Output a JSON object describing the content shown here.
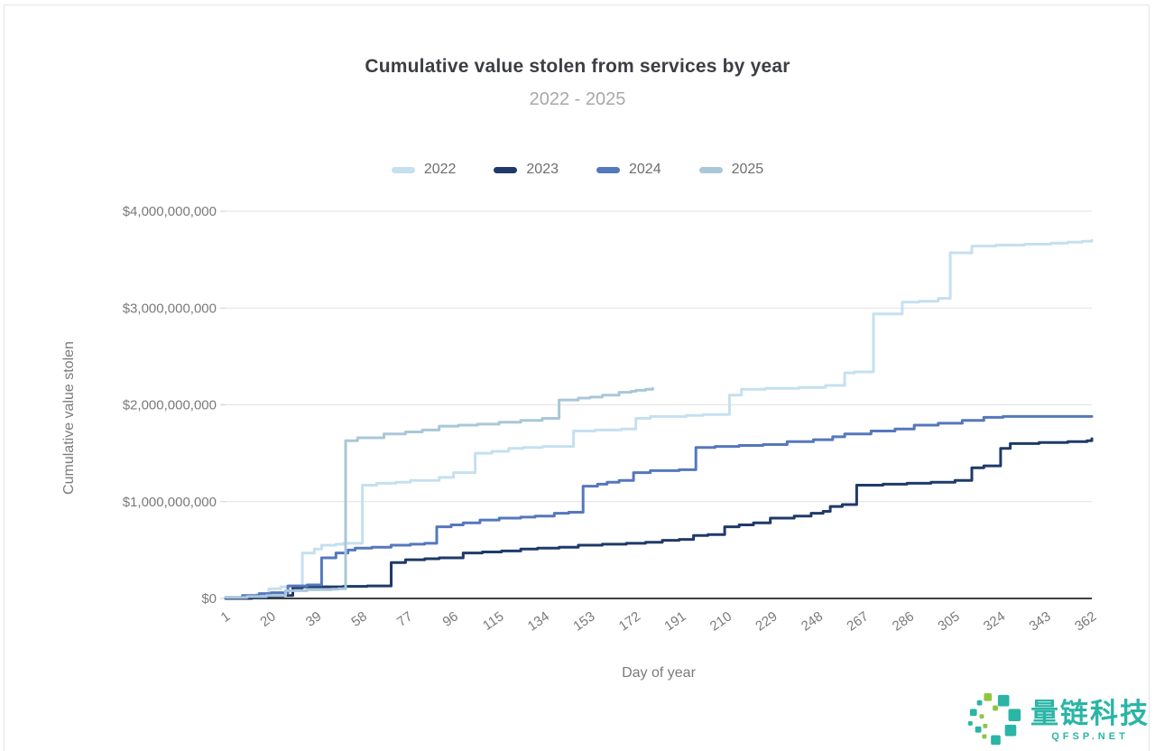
{
  "chart_data": {
    "type": "line",
    "title": "Cumulative value stolen from services by year",
    "subtitle": "2022 - 2025",
    "xlabel": "Day of year",
    "ylabel": "Cumulative value stolen",
    "unit": "USD billions",
    "line_interpolation": "step-after",
    "grid": "horizontal-only",
    "legend_position": "top-center",
    "xlim": [
      1,
      366
    ],
    "ylim_busd": [
      0,
      4
    ],
    "x_ticks": [
      1,
      20,
      39,
      58,
      77,
      96,
      115,
      134,
      153,
      172,
      191,
      210,
      229,
      248,
      267,
      286,
      305,
      324,
      343,
      362
    ],
    "y_ticks": [
      {
        "busd": 0,
        "label": "$0"
      },
      {
        "busd": 1,
        "label": "$1,000,000,000"
      },
      {
        "busd": 2,
        "label": "$2,000,000,000"
      },
      {
        "busd": 3,
        "label": "$3,000,000,000"
      },
      {
        "busd": 4,
        "label": "$4,000,000,000"
      }
    ],
    "series": [
      {
        "name": "2022",
        "color": "#c5e0ef",
        "points_day_busd": [
          [
            1,
            0
          ],
          [
            8,
            0.02
          ],
          [
            14,
            0.04
          ],
          [
            18,
            0.05
          ],
          [
            19,
            0.1
          ],
          [
            24,
            0.12
          ],
          [
            28,
            0.13
          ],
          [
            33,
            0.47
          ],
          [
            38,
            0.51
          ],
          [
            41,
            0.55
          ],
          [
            47,
            0.56
          ],
          [
            50,
            0.57
          ],
          [
            58,
            1.17
          ],
          [
            64,
            1.19
          ],
          [
            72,
            1.2
          ],
          [
            78,
            1.22
          ],
          [
            90,
            1.25
          ],
          [
            96,
            1.3
          ],
          [
            105,
            1.5
          ],
          [
            112,
            1.52
          ],
          [
            119,
            1.55
          ],
          [
            125,
            1.56
          ],
          [
            133,
            1.57
          ],
          [
            146,
            1.73
          ],
          [
            155,
            1.74
          ],
          [
            166,
            1.75
          ],
          [
            172,
            1.86
          ],
          [
            178,
            1.88
          ],
          [
            193,
            1.89
          ],
          [
            200,
            1.9
          ],
          [
            211,
            2.1
          ],
          [
            216,
            2.16
          ],
          [
            226,
            2.17
          ],
          [
            240,
            2.18
          ],
          [
            251,
            2.2
          ],
          [
            259,
            2.33
          ],
          [
            263,
            2.34
          ],
          [
            271,
            2.94
          ],
          [
            283,
            3.06
          ],
          [
            290,
            3.07
          ],
          [
            298,
            3.1
          ],
          [
            303,
            3.57
          ],
          [
            312,
            3.64
          ],
          [
            322,
            3.65
          ],
          [
            334,
            3.66
          ],
          [
            345,
            3.67
          ],
          [
            352,
            3.68
          ],
          [
            358,
            3.69
          ],
          [
            362,
            3.7
          ]
        ]
      },
      {
        "name": "2023",
        "color": "#1e3a68",
        "points_day_busd": [
          [
            1,
            0
          ],
          [
            12,
            0.01
          ],
          [
            19,
            0.02
          ],
          [
            25,
            0.03
          ],
          [
            29,
            0.11
          ],
          [
            33,
            0.12
          ],
          [
            50,
            0.125
          ],
          [
            60,
            0.13
          ],
          [
            70,
            0.37
          ],
          [
            76,
            0.4
          ],
          [
            84,
            0.41
          ],
          [
            90,
            0.42
          ],
          [
            100,
            0.47
          ],
          [
            108,
            0.48
          ],
          [
            116,
            0.49
          ],
          [
            124,
            0.51
          ],
          [
            131,
            0.52
          ],
          [
            140,
            0.53
          ],
          [
            148,
            0.55
          ],
          [
            158,
            0.56
          ],
          [
            168,
            0.57
          ],
          [
            176,
            0.58
          ],
          [
            183,
            0.6
          ],
          [
            190,
            0.61
          ],
          [
            196,
            0.65
          ],
          [
            202,
            0.66
          ],
          [
            209,
            0.74
          ],
          [
            215,
            0.76
          ],
          [
            221,
            0.78
          ],
          [
            228,
            0.83
          ],
          [
            238,
            0.85
          ],
          [
            245,
            0.88
          ],
          [
            250,
            0.9
          ],
          [
            253,
            0.95
          ],
          [
            258,
            0.97
          ],
          [
            264,
            1.17
          ],
          [
            275,
            1.18
          ],
          [
            285,
            1.19
          ],
          [
            295,
            1.2
          ],
          [
            305,
            1.22
          ],
          [
            312,
            1.35
          ],
          [
            317,
            1.37
          ],
          [
            324,
            1.55
          ],
          [
            328,
            1.6
          ],
          [
            340,
            1.61
          ],
          [
            352,
            1.62
          ],
          [
            360,
            1.63
          ],
          [
            362,
            1.65
          ]
        ]
      },
      {
        "name": "2024",
        "color": "#5577bd",
        "points_day_busd": [
          [
            1,
            0.01
          ],
          [
            8,
            0.03
          ],
          [
            15,
            0.05
          ],
          [
            20,
            0.06
          ],
          [
            27,
            0.13
          ],
          [
            35,
            0.14
          ],
          [
            41,
            0.42
          ],
          [
            47,
            0.47
          ],
          [
            52,
            0.5
          ],
          [
            55,
            0.52
          ],
          [
            62,
            0.53
          ],
          [
            70,
            0.55
          ],
          [
            78,
            0.56
          ],
          [
            84,
            0.57
          ],
          [
            89,
            0.74
          ],
          [
            95,
            0.76
          ],
          [
            100,
            0.78
          ],
          [
            107,
            0.81
          ],
          [
            115,
            0.83
          ],
          [
            124,
            0.84
          ],
          [
            130,
            0.85
          ],
          [
            138,
            0.88
          ],
          [
            144,
            0.89
          ],
          [
            150,
            1.16
          ],
          [
            156,
            1.18
          ],
          [
            160,
            1.2
          ],
          [
            165,
            1.22
          ],
          [
            171,
            1.3
          ],
          [
            178,
            1.32
          ],
          [
            190,
            1.33
          ],
          [
            197,
            1.56
          ],
          [
            205,
            1.57
          ],
          [
            215,
            1.58
          ],
          [
            225,
            1.59
          ],
          [
            235,
            1.62
          ],
          [
            246,
            1.64
          ],
          [
            254,
            1.67
          ],
          [
            259,
            1.7
          ],
          [
            270,
            1.73
          ],
          [
            280,
            1.75
          ],
          [
            288,
            1.79
          ],
          [
            298,
            1.81
          ],
          [
            308,
            1.84
          ],
          [
            317,
            1.87
          ],
          [
            325,
            1.88
          ],
          [
            362,
            1.88
          ]
        ]
      },
      {
        "name": "2025",
        "color": "#a9c7d8",
        "points_day_busd": [
          [
            1,
            0.01
          ],
          [
            10,
            0.02
          ],
          [
            18,
            0.03
          ],
          [
            26,
            0.08
          ],
          [
            35,
            0.09
          ],
          [
            45,
            0.095
          ],
          [
            48,
            0.1
          ],
          [
            51,
            1.63
          ],
          [
            56,
            1.66
          ],
          [
            67,
            1.7
          ],
          [
            76,
            1.72
          ],
          [
            83,
            1.74
          ],
          [
            90,
            1.78
          ],
          [
            98,
            1.79
          ],
          [
            106,
            1.8
          ],
          [
            115,
            1.82
          ],
          [
            124,
            1.84
          ],
          [
            133,
            1.86
          ],
          [
            140,
            2.05
          ],
          [
            148,
            2.07
          ],
          [
            153,
            2.08
          ],
          [
            158,
            2.1
          ],
          [
            165,
            2.13
          ],
          [
            170,
            2.14
          ],
          [
            172,
            2.15
          ],
          [
            176,
            2.16
          ],
          [
            179,
            2.17
          ]
        ]
      }
    ]
  },
  "watermark": {
    "brand": "量链科技",
    "url": "QFSP.NET",
    "teal": "#2ab5a6",
    "green": "#8dc63f"
  },
  "theme": {
    "title_color": "#3c3e44",
    "subtitle_color": "#a8a8a8",
    "axis_text_color": "#7a7a7a",
    "gridline_color": "#e2e2e2",
    "axis_line_color": "#3f3f3f",
    "legend_text_color": "#6e6e6e",
    "background": "#ffffff"
  }
}
